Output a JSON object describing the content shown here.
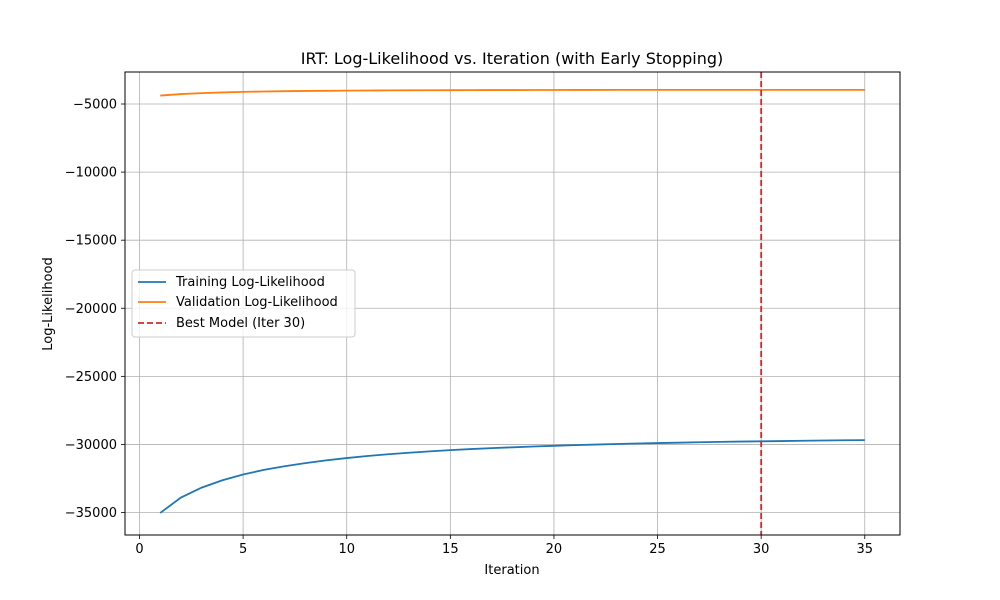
{
  "chart_data": {
    "type": "line",
    "title": "IRT: Log-Likelihood vs. Iteration (with Early Stopping)",
    "xlabel": "Iteration",
    "ylabel": "Log-Likelihood",
    "xlim": [
      -0.7,
      36.7
    ],
    "ylim": [
      -36650,
      -2650
    ],
    "xticks": [
      0,
      5,
      10,
      15,
      20,
      25,
      30,
      35
    ],
    "yticks": [
      -35000,
      -30000,
      -25000,
      -20000,
      -15000,
      -10000,
      -5000
    ],
    "xtick_labels": [
      "0",
      "5",
      "10",
      "15",
      "20",
      "25",
      "30",
      "35"
    ],
    "ytick_labels": [
      "−35000",
      "−30000",
      "−25000",
      "−20000",
      "−15000",
      "−10000",
      "−5000"
    ],
    "grid": true,
    "legend_position": "center-left",
    "x": [
      1,
      2,
      3,
      4,
      5,
      6,
      7,
      8,
      9,
      10,
      11,
      12,
      13,
      14,
      15,
      16,
      17,
      18,
      19,
      20,
      21,
      22,
      23,
      24,
      25,
      26,
      27,
      28,
      29,
      30,
      31,
      32,
      33,
      34,
      35
    ],
    "series": [
      {
        "name": "Training Log-Likelihood",
        "color": "#1f77b4",
        "style": "solid",
        "values": [
          -35030,
          -33900,
          -33170,
          -32630,
          -32210,
          -31870,
          -31600,
          -31370,
          -31170,
          -31000,
          -30850,
          -30720,
          -30610,
          -30510,
          -30420,
          -30340,
          -30270,
          -30210,
          -30150,
          -30100,
          -30050,
          -30010,
          -29970,
          -29930,
          -29900,
          -29870,
          -29840,
          -29810,
          -29790,
          -29770,
          -29750,
          -29730,
          -29710,
          -29690,
          -29680
        ]
      },
      {
        "name": "Validation Log-Likelihood",
        "color": "#ff7f0e",
        "style": "solid",
        "values": [
          -4380,
          -4270,
          -4200,
          -4150,
          -4110,
          -4080,
          -4060,
          -4040,
          -4030,
          -4020,
          -4010,
          -4000,
          -3995,
          -3990,
          -3985,
          -3980,
          -3978,
          -3975,
          -3972,
          -3970,
          -3968,
          -3966,
          -3965,
          -3964,
          -3963,
          -3962,
          -3961,
          -3961,
          -3960,
          -3960,
          -3960,
          -3960,
          -3961,
          -3961,
          -3962
        ]
      }
    ],
    "vline": {
      "name": "Best Model (Iter 30)",
      "x": 30,
      "color": "#d62728",
      "style": "dashed"
    }
  }
}
